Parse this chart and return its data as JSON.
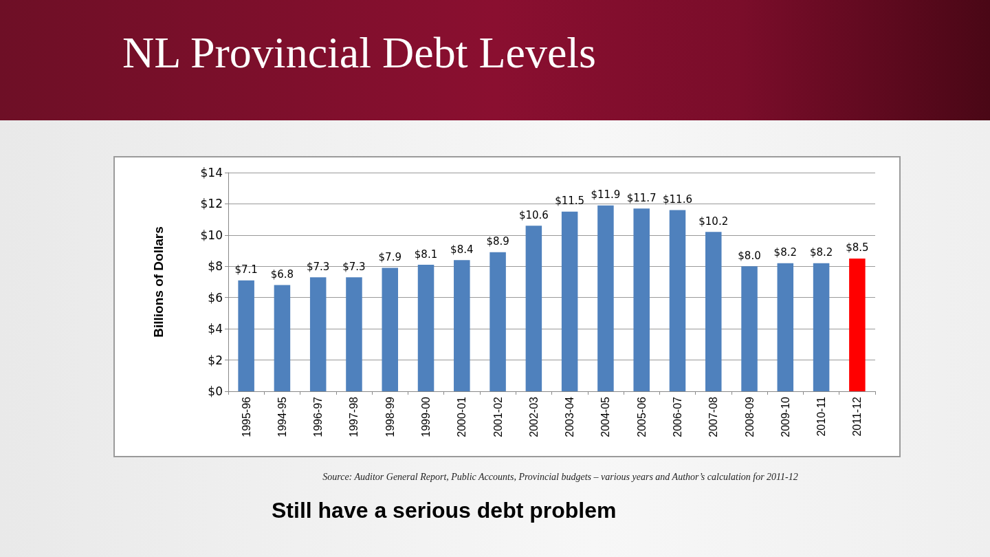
{
  "chart_data": {
    "type": "bar",
    "title": "NL Provincial Debt Levels",
    "ylabel": "Billions of Dollars",
    "categories": [
      "1995-96",
      "1994-95",
      "1996-97",
      "1997-98",
      "1998-99",
      "1999-00",
      "2000-01",
      "2001-02",
      "2002-03",
      "2003-04",
      "2004-05",
      "2005-06",
      "2006-07",
      "2007-08",
      "2008-09",
      "2009-10",
      "2010-11",
      "2011-12"
    ],
    "values": [
      7.1,
      6.8,
      7.3,
      7.3,
      7.9,
      8.1,
      8.4,
      8.9,
      10.6,
      11.5,
      11.9,
      11.7,
      11.6,
      10.2,
      8.0,
      8.2,
      8.2,
      8.5
    ],
    "value_labels": [
      "$7.1",
      "$6.8",
      "$7.3",
      "$7.3",
      "$7.9",
      "$8.1",
      "$8.4",
      "$8.9",
      "$10.6",
      "$11.5",
      "$11.9",
      "$11.7",
      "$11.6",
      "$10.2",
      "$8.0",
      "$8.2",
      "$8.2",
      "$8.5"
    ],
    "colors": [
      "#4f81bd",
      "#4f81bd",
      "#4f81bd",
      "#4f81bd",
      "#4f81bd",
      "#4f81bd",
      "#4f81bd",
      "#4f81bd",
      "#4f81bd",
      "#4f81bd",
      "#4f81bd",
      "#4f81bd",
      "#4f81bd",
      "#4f81bd",
      "#4f81bd",
      "#4f81bd",
      "#4f81bd",
      "#ff0000"
    ],
    "ylim": [
      0,
      14
    ],
    "yticks": [
      {
        "value": 0,
        "label": "$0"
      },
      {
        "value": 2,
        "label": "$2"
      },
      {
        "value": 4,
        "label": "$4"
      },
      {
        "value": 6,
        "label": "$6"
      },
      {
        "value": 8,
        "label": "$8"
      },
      {
        "value": 10,
        "label": "$10"
      },
      {
        "value": 12,
        "label": "$12"
      },
      {
        "value": 14,
        "label": "$14"
      }
    ],
    "grid": "y",
    "annotations": [
      "Source: Auditor General Report, Public Accounts, Provincial budgets – various years and Author’s calculation for 2011-12",
      "Still have a serious debt problem"
    ]
  }
}
